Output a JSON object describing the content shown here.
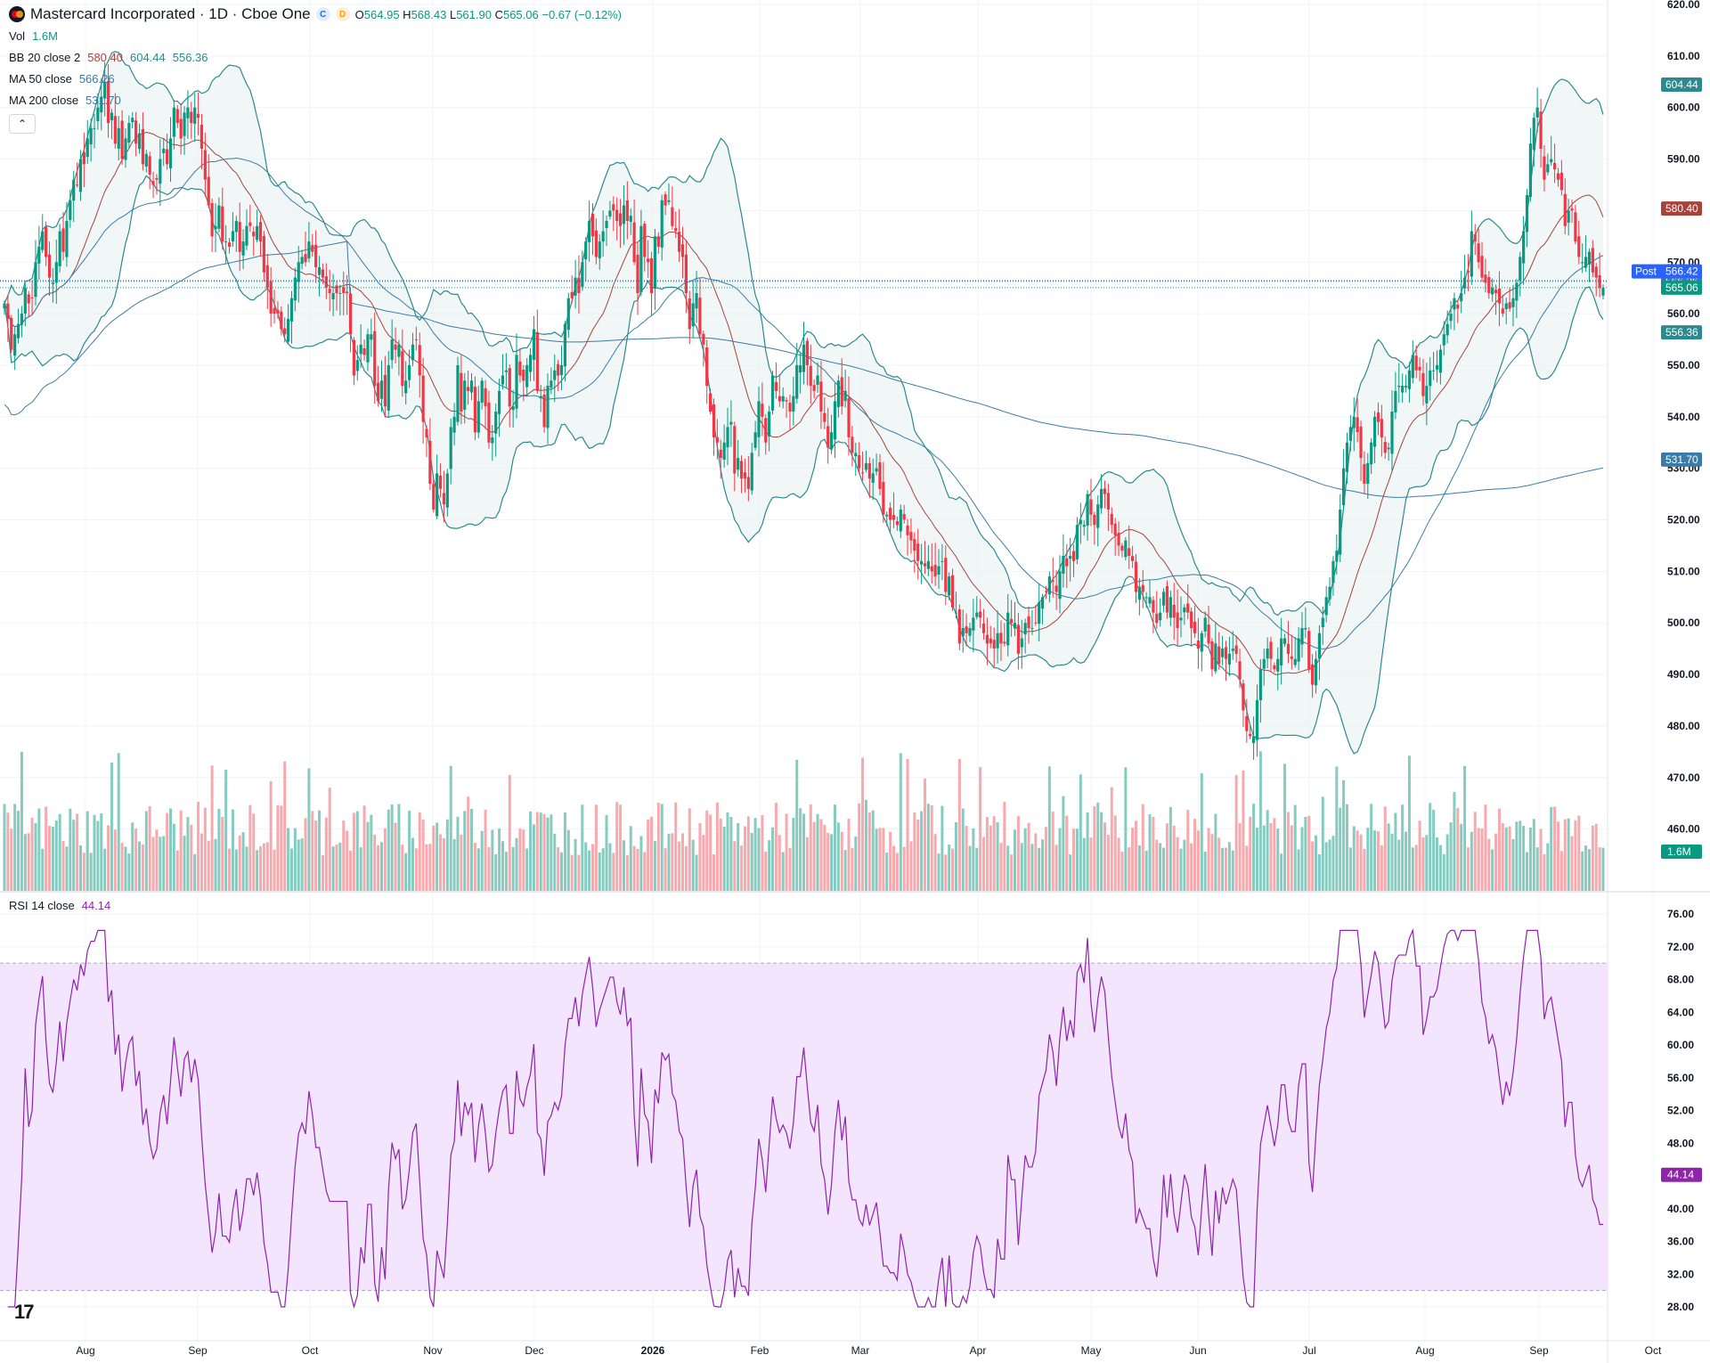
{
  "header": {
    "title": "Mastercard Incorporated · 1D · Cboe One",
    "badge_c": "C",
    "badge_d": "D",
    "ohlc": {
      "o_label": "O",
      "o": "564.95",
      "h_label": "H",
      "h": "568.43",
      "l_label": "L",
      "l": "561.90",
      "c_label": "C",
      "c": "565.06",
      "change": "−0.67 (−0.12%)"
    }
  },
  "indicators": {
    "vol": {
      "label": "Vol",
      "value": "1.6M"
    },
    "bb": {
      "label": "BB 20 close 2",
      "basis": "580.40",
      "upper": "604.44",
      "lower": "556.36"
    },
    "ma50": {
      "label": "MA 50 close",
      "value": "566.26"
    },
    "ma200": {
      "label": "MA 200 close",
      "value": "531.70"
    },
    "rsi": {
      "label": "RSI 14 close",
      "value": "44.14"
    }
  },
  "badges": {
    "bb_upper": "604.44",
    "bb_basis": "580.40",
    "post_label": "Post",
    "post": "566.42",
    "ma50": "566.26",
    "last": "565.06",
    "bb_lower": "556.36",
    "ma200": "531.70",
    "vol": "1.6M",
    "rsi": "44.14"
  },
  "colors": {
    "up": "#089981",
    "down": "#f23645",
    "up_vol": "#86cbc0",
    "down_vol": "#f7a9ae",
    "bb_line": "#2b8a8f",
    "bb_fill": "#e7f2f2",
    "bb_basis": "#a8433b",
    "ma50": "#3a7ca5",
    "ma200": "#3a7ca5",
    "rsi": "#8e24aa",
    "rsi_band": "#f3e5fd",
    "post": "#2962ff"
  },
  "chart_data": {
    "type": "candlestick",
    "price_axis": {
      "min": 457,
      "max": 620,
      "ticks": [
        "620.00",
        "610.00",
        "600.00",
        "590.00",
        "580.00",
        "570.00",
        "560.00",
        "550.00",
        "540.00",
        "530.00",
        "520.00",
        "510.00",
        "500.00",
        "490.00",
        "480.00",
        "470.00",
        "460.00"
      ]
    },
    "x_labels": [
      "Aug",
      "Sep",
      "Oct",
      "Nov",
      "Dec",
      "2026",
      "Feb",
      "Mar",
      "Apr",
      "May",
      "Jun",
      "Jul",
      "Aug",
      "Sep",
      "Oct"
    ],
    "closes": [
      562,
      559,
      553,
      556,
      558,
      560,
      565,
      562,
      563,
      570,
      573,
      576,
      571,
      567,
      566,
      570,
      576,
      572,
      578,
      582,
      586,
      585,
      590,
      589,
      594,
      596,
      596,
      600,
      602,
      605,
      597,
      599,
      593,
      596,
      590,
      594,
      597,
      598,
      593,
      595,
      589,
      591,
      587,
      585,
      586,
      590,
      592,
      589,
      594,
      600,
      597,
      594,
      599,
      600,
      597,
      600,
      598,
      592,
      586,
      581,
      575,
      577,
      581,
      574,
      574,
      573,
      576,
      578,
      572,
      574,
      577,
      577,
      575,
      577,
      574,
      568,
      565,
      560,
      560,
      560,
      557,
      556,
      559,
      563,
      567,
      570,
      571,
      570,
      574,
      572,
      569,
      569,
      567,
      565,
      564,
      564,
      564,
      564,
      564,
      564,
      556,
      548,
      551,
      554,
      552,
      556,
      556,
      546,
      543,
      547,
      542,
      550,
      555,
      553,
      554,
      546,
      547,
      550,
      554,
      555,
      548,
      539,
      536,
      527,
      522,
      529,
      526,
      523,
      529,
      538,
      540,
      550,
      541,
      547,
      545,
      547,
      537,
      543,
      547,
      542,
      535,
      536,
      541,
      545,
      548,
      549,
      542,
      542,
      552,
      548,
      547,
      550,
      552,
      557,
      545,
      544,
      538,
      546,
      547,
      549,
      548,
      550,
      558,
      563,
      563,
      567,
      564,
      570,
      574,
      578,
      575,
      571,
      574,
      576,
      578,
      580,
      580,
      578,
      577,
      581,
      578,
      579,
      570,
      564,
      577,
      571,
      570,
      564,
      575,
      573,
      582,
      581,
      582,
      577,
      576,
      572,
      571,
      564,
      557,
      562,
      564,
      556,
      554,
      546,
      541,
      536,
      535,
      532,
      535,
      538,
      539,
      529,
      532,
      528,
      528,
      526,
      533,
      537,
      543,
      540,
      535,
      541,
      548,
      545,
      543,
      544,
      543,
      541,
      544,
      550,
      550,
      554,
      550,
      546,
      545,
      548,
      541,
      539,
      534,
      537,
      543,
      547,
      542,
      545,
      536,
      533,
      533,
      530,
      529,
      531,
      528,
      529,
      530,
      526,
      521,
      521,
      520,
      520,
      519,
      522,
      520,
      517,
      516,
      514,
      512,
      512,
      511,
      512,
      510,
      509,
      511,
      512,
      506,
      509,
      503,
      502,
      496,
      499,
      498,
      499,
      501,
      502,
      501,
      498,
      496,
      496,
      495,
      498,
      496,
      496,
      502,
      500,
      500,
      494,
      497,
      500,
      499,
      499,
      500,
      504,
      505,
      506,
      509,
      508,
      506,
      510,
      513,
      511,
      513,
      512,
      519,
      520,
      519,
      525,
      521,
      519,
      523,
      526,
      525,
      522,
      519,
      517,
      515,
      514,
      516,
      513,
      512,
      506,
      507,
      506,
      505,
      505,
      502,
      500,
      502,
      506,
      502,
      505,
      501,
      499,
      501,
      503,
      502,
      499,
      498,
      495,
      498,
      501,
      496,
      491,
      496,
      492,
      495,
      493,
      494,
      495,
      494,
      489,
      483,
      479,
      478,
      478,
      485,
      491,
      493,
      495,
      493,
      491,
      493,
      497,
      497,
      494,
      493,
      493,
      497,
      499,
      499,
      491,
      488,
      493,
      498,
      501,
      505,
      507,
      512,
      514,
      522,
      530,
      535,
      538,
      540,
      537,
      532,
      527,
      531,
      535,
      540,
      539,
      536,
      533,
      534,
      541,
      545,
      546,
      546,
      546,
      549,
      552,
      549,
      549,
      544,
      546,
      549,
      549,
      550,
      553,
      556,
      558,
      560,
      563,
      561,
      564,
      567,
      568,
      576,
      574,
      570,
      567,
      566,
      564,
      565,
      564,
      562,
      560,
      562,
      561,
      563,
      566,
      571,
      576,
      583,
      593,
      598,
      600,
      592,
      586,
      589,
      590,
      588,
      586,
      584,
      577,
      580,
      580,
      574,
      571,
      570,
      571,
      572,
      568,
      567,
      565,
      565
    ],
    "vol_scale_note": "",
    "rsi_axis": {
      "min": 27,
      "max": 77,
      "ticks": [
        "76.00",
        "72.00",
        "68.00",
        "64.00",
        "60.00",
        "56.00",
        "52.00",
        "48.00",
        "44.00",
        "40.00",
        "36.00",
        "32.00",
        "28.00"
      ],
      "overbought": 70,
      "oversold": 30
    }
  }
}
